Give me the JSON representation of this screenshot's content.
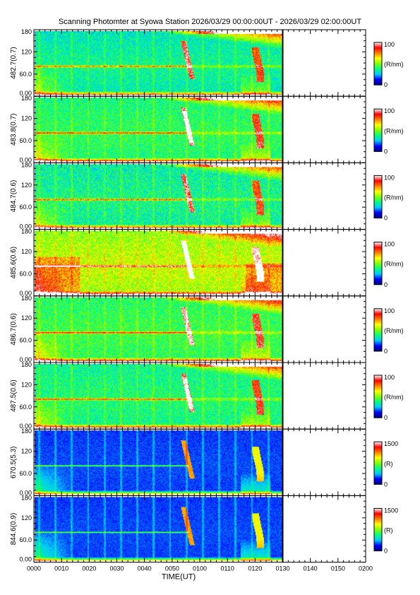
{
  "title": "Scanning Photomter at Syowa Station 2026/03/29 00:00:00UT - 2026/03/29 02:00:00UT",
  "chart_data": {
    "type": "heatmap",
    "xlabel": "TIME(UT)",
    "x_ticks": [
      "0000",
      "0010",
      "0020",
      "0030",
      "0040",
      "0050",
      "0100",
      "0110",
      "0120",
      "0130",
      "0140",
      "0150",
      "0200"
    ],
    "y_ticks": [
      "0.00",
      "60.0",
      "120",
      "180"
    ],
    "ylim": [
      0,
      180
    ],
    "data_end": "0130",
    "colormap": [
      "#000080",
      "#0000ff",
      "#00c8ff",
      "#00ff80",
      "#80ff00",
      "#ffff00",
      "#ff8000",
      "#ff0000",
      "#ffffff"
    ],
    "panels": [
      {
        "label": "482.7(0.7)",
        "unit": "(R/nm)",
        "cmin": "0",
        "cmax": "100",
        "base": 0.32,
        "noise": 0.1,
        "trend": 0.08,
        "twilight": 1,
        "aurora": 0.1
      },
      {
        "label": "483.8(0.7)",
        "unit": "(R/nm)",
        "cmin": "0",
        "cmax": "100",
        "base": 0.38,
        "noise": 0.1,
        "trend": 0.06,
        "twilight": 1,
        "aurora": 0.2
      },
      {
        "label": "484.7(0.6)",
        "unit": "(R/nm)",
        "cmin": "0",
        "cmax": "100",
        "base": 0.34,
        "noise": 0.12,
        "trend": 0.06,
        "twilight": 1,
        "aurora": 0.1
      },
      {
        "label": "485.6(0.6)",
        "unit": "(R/nm)",
        "cmin": "0",
        "cmax": "100",
        "base": 0.52,
        "noise": 0.12,
        "trend": 0.1,
        "twilight": 1,
        "aurora": 0.2
      },
      {
        "label": "486.7(0.6)",
        "unit": "(R/nm)",
        "cmin": "0",
        "cmax": "100",
        "base": 0.4,
        "noise": 0.1,
        "trend": 0.06,
        "twilight": 1,
        "aurora": 0.1
      },
      {
        "label": "487.5(0.6)",
        "unit": "(R/nm)",
        "cmin": "0",
        "cmax": "100",
        "base": 0.36,
        "noise": 0.1,
        "trend": 0.06,
        "twilight": 1,
        "aurora": 0.2
      },
      {
        "label": "670.5(5.3)",
        "unit": "(R)",
        "cmin": "0",
        "cmax": "1500",
        "base": 0.16,
        "noise": 0.04,
        "trend": 0.02,
        "twilight": 0,
        "aurora": 1
      },
      {
        "label": "844.6(0.9)",
        "unit": "(R)",
        "cmin": "0",
        "cmax": "1500",
        "base": 0.16,
        "noise": 0.04,
        "trend": 0.02,
        "twilight": 0,
        "aurora": 1
      }
    ]
  }
}
